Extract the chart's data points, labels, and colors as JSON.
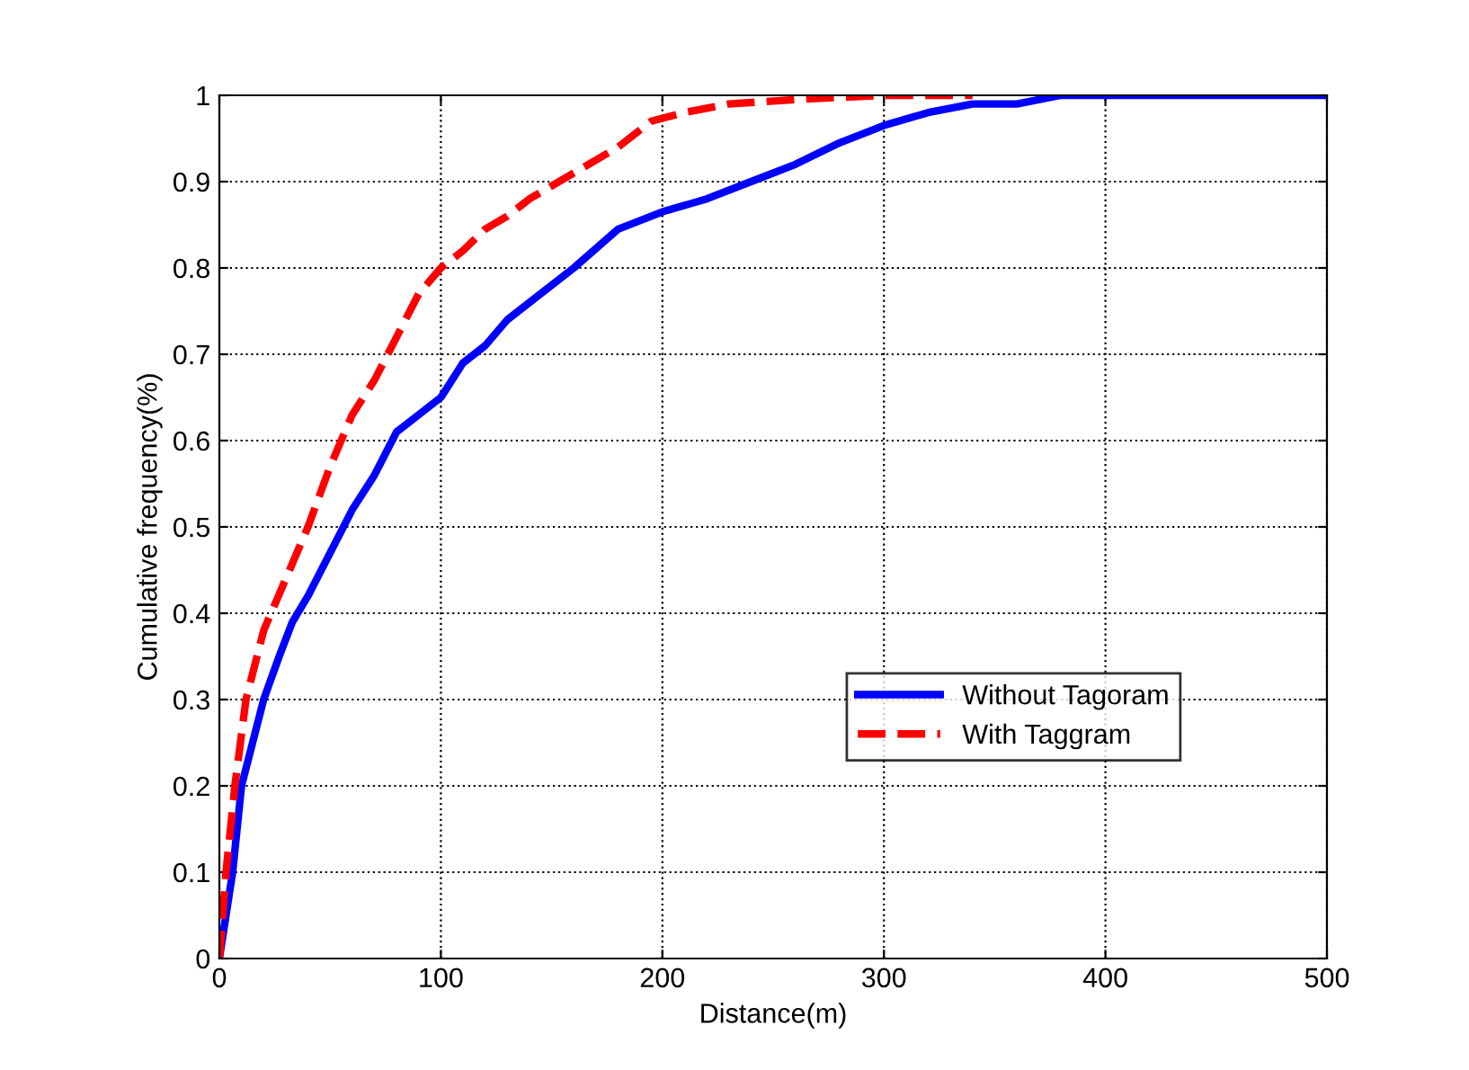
{
  "chart_data": {
    "type": "line",
    "xlabel": "Distance(m)",
    "ylabel": "Cumulative frequency(%)",
    "xlim": [
      0,
      500
    ],
    "xticks": [
      0,
      100,
      200,
      300,
      400,
      500
    ],
    "ylim": [
      0,
      1
    ],
    "yticks": [
      0,
      0.1,
      0.2,
      0.3,
      0.4,
      0.5,
      0.6,
      0.7,
      0.8,
      0.9,
      1
    ],
    "grid": true,
    "legend": "right",
    "marker": "none",
    "series": [
      {
        "name": "Without Tagoram",
        "color": "#0000ff",
        "line_style": "solid",
        "x": [
          0,
          3,
          6,
          10,
          15,
          20,
          27,
          33,
          40,
          50,
          60,
          70,
          80,
          90,
          100,
          110,
          120,
          130,
          140,
          160,
          180,
          200,
          220,
          240,
          260,
          280,
          300,
          320,
          340,
          360,
          380,
          500
        ],
        "values": [
          0,
          0.05,
          0.1,
          0.2,
          0.25,
          0.3,
          0.35,
          0.39,
          0.42,
          0.47,
          0.52,
          0.56,
          0.61,
          0.63,
          0.65,
          0.69,
          0.71,
          0.74,
          0.76,
          0.8,
          0.845,
          0.865,
          0.88,
          0.9,
          0.92,
          0.945,
          0.965,
          0.98,
          0.99,
          0.99,
          1.0,
          1.0
        ]
      },
      {
        "name": "With Taggram",
        "color": "#ff0000",
        "line_style": "dashed",
        "x": [
          0,
          3,
          7,
          12,
          20,
          30,
          40,
          50,
          60,
          70,
          80,
          90,
          100,
          110,
          120,
          130,
          140,
          160,
          180,
          195,
          210,
          230,
          260,
          300,
          340
        ],
        "values": [
          0,
          0.1,
          0.2,
          0.3,
          0.38,
          0.44,
          0.5,
          0.57,
          0.63,
          0.67,
          0.72,
          0.77,
          0.8,
          0.82,
          0.845,
          0.86,
          0.88,
          0.91,
          0.94,
          0.97,
          0.98,
          0.99,
          0.995,
          1.0,
          1.0
        ]
      }
    ]
  }
}
